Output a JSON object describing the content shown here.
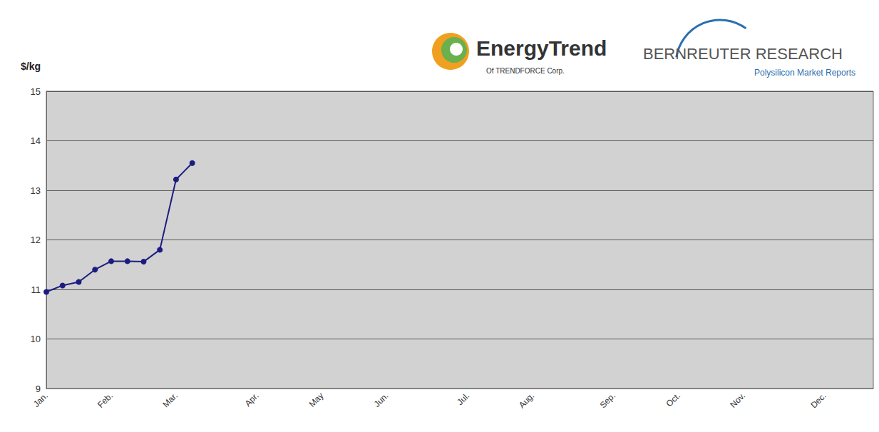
{
  "chart_data": {
    "type": "line",
    "ylabel": "$/kg",
    "annotations": [
      "EnergyTrend",
      "Of TRENDFORCE Corp.",
      "BERNREUTER RESEARCH",
      "Polysilicon Market Reports"
    ],
    "categories": [
      "Jan.",
      null,
      null,
      null,
      "Feb.",
      null,
      null,
      null,
      "Mar.",
      null,
      null,
      null,
      null,
      "Apr.",
      null,
      null,
      null,
      "May",
      null,
      null,
      null,
      "Jun.",
      null,
      null,
      null,
      null,
      "Jul.",
      null,
      null,
      null,
      "Aug.",
      null,
      null,
      null,
      null,
      "Sep.",
      null,
      null,
      null,
      "Oct.",
      null,
      null,
      null,
      "Nov.",
      null,
      null,
      null,
      null,
      "Dec.",
      null,
      null,
      null
    ],
    "values": [
      10.95,
      11.08,
      11.15,
      11.4,
      11.57,
      11.57,
      11.56,
      11.8,
      13.22,
      13.55,
      null,
      null,
      null,
      null,
      null,
      null,
      null,
      null,
      null,
      null,
      null,
      null,
      null,
      null,
      null,
      null,
      null,
      null,
      null,
      null,
      null,
      null,
      null,
      null,
      null,
      null,
      null,
      null,
      null,
      null,
      null,
      null,
      null,
      null,
      null,
      null,
      null,
      null,
      null,
      null,
      null,
      null
    ],
    "color": "#1c1c80",
    "marker": "circle",
    "ylim": [
      9,
      15
    ],
    "yticks": [
      9,
      10,
      11,
      12,
      13,
      14,
      15
    ],
    "grid": true
  }
}
